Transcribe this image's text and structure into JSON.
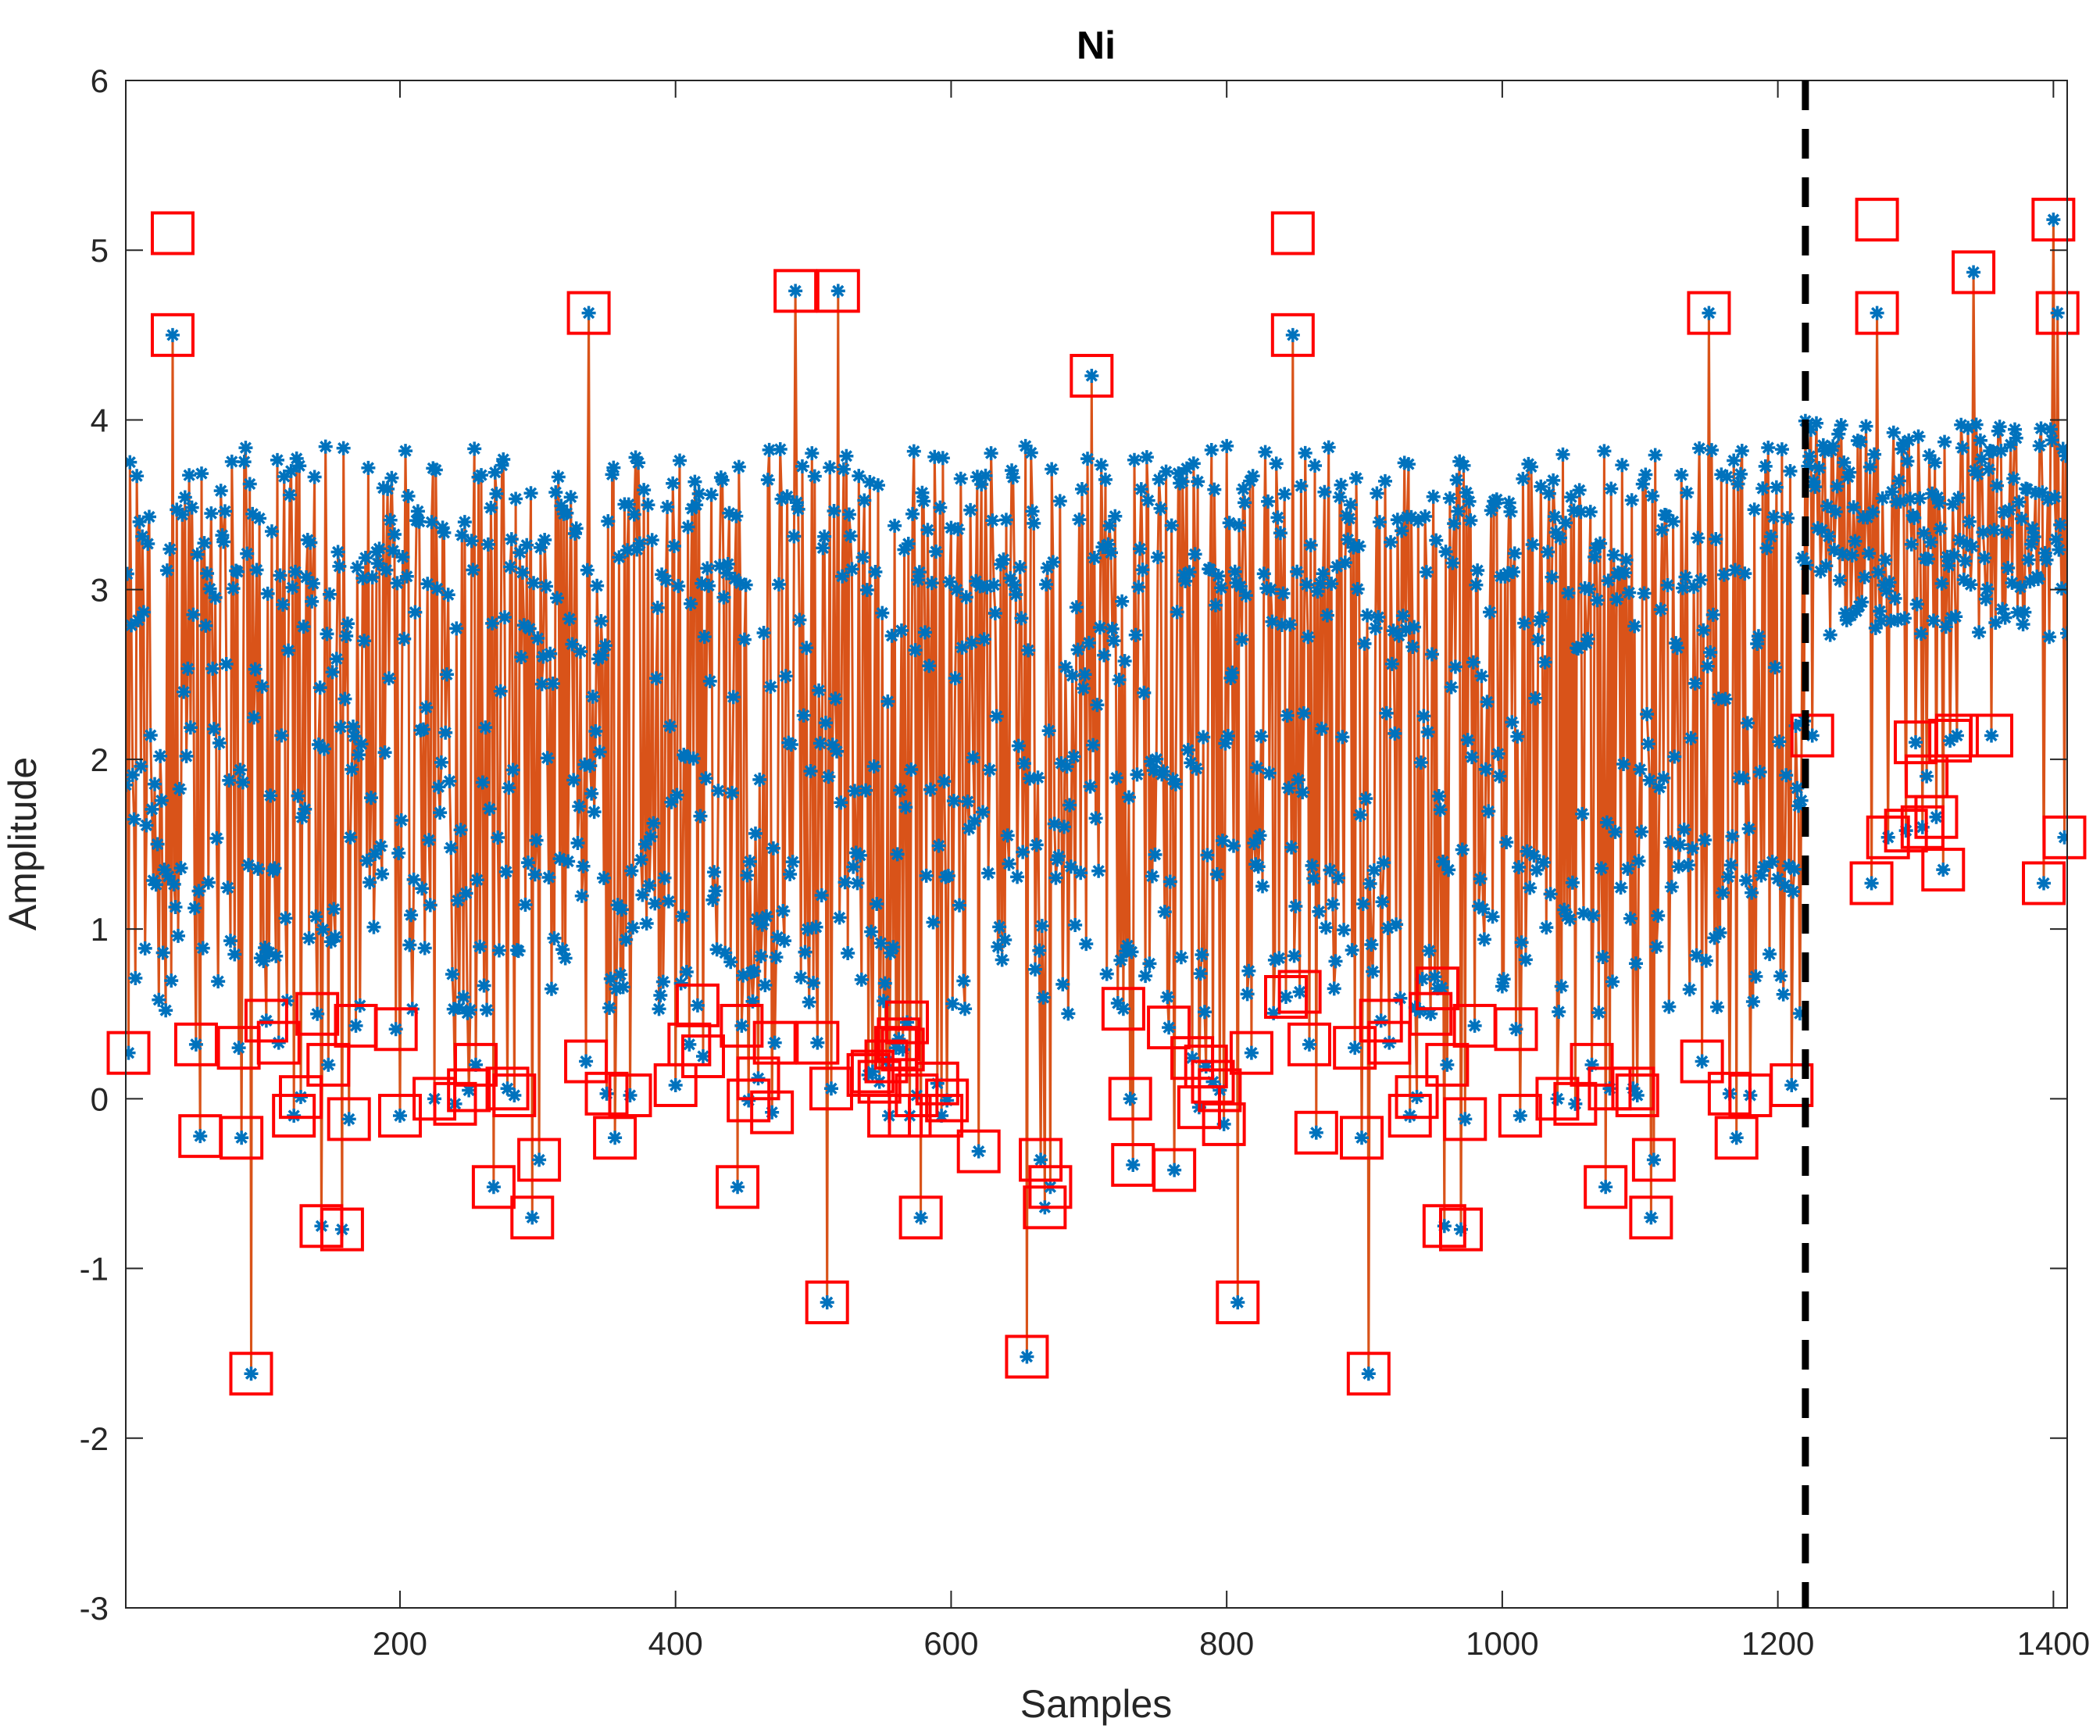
{
  "chart_data": {
    "type": "line",
    "title": "Ni",
    "xlabel": "Samples",
    "ylabel": "Amplitude",
    "xlim": [
      1,
      1410
    ],
    "ylim": [
      -3,
      6
    ],
    "xticks": [
      200,
      400,
      600,
      800,
      1000,
      1200,
      1400
    ],
    "yticks": [
      -3,
      -2,
      -1,
      0,
      1,
      2,
      3,
      4,
      5,
      6
    ],
    "grid": false,
    "changepoint_x": 1220,
    "colors": {
      "marker": "#0072BD",
      "line": "#D95319",
      "outlier_box": "#FF0000",
      "changepoint": "#000000"
    },
    "series": [
      {
        "name": "samples",
        "style": "asterisk-markers-with-line"
      },
      {
        "name": "outliers",
        "style": "red-square",
        "points": [
          [
            3,
            0.27
          ],
          [
            35,
            5.1
          ],
          [
            35,
            4.5
          ],
          [
            52,
            0.32
          ],
          [
            55,
            -0.22
          ],
          [
            83,
            0.3
          ],
          [
            85,
            -0.23
          ],
          [
            92,
            -1.62
          ],
          [
            103,
            0.46
          ],
          [
            112,
            0.33
          ],
          [
            123,
            -0.1
          ],
          [
            128,
            0.01
          ],
          [
            140,
            0.5
          ],
          [
            143,
            -0.75
          ],
          [
            148,
            0.2
          ],
          [
            158,
            -0.77
          ],
          [
            163,
            -0.12
          ],
          [
            168,
            0.43
          ],
          [
            197,
            0.41
          ],
          [
            200,
            -0.1
          ],
          [
            225,
            0.0
          ],
          [
            240,
            -0.03
          ],
          [
            250,
            0.05
          ],
          [
            255,
            0.2
          ],
          [
            268,
            -0.52
          ],
          [
            278,
            0.06
          ],
          [
            283,
            0.02
          ],
          [
            296,
            -0.7
          ],
          [
            301,
            -0.36
          ],
          [
            335,
            0.22
          ],
          [
            337,
            4.63
          ],
          [
            350,
            0.03
          ],
          [
            356,
            -0.23
          ],
          [
            367,
            0.02
          ],
          [
            400,
            0.08
          ],
          [
            410,
            0.32
          ],
          [
            416,
            0.55
          ],
          [
            420,
            0.25
          ],
          [
            445,
            -0.52
          ],
          [
            448,
            0.43
          ],
          [
            453,
            -0.01
          ],
          [
            460,
            0.12
          ],
          [
            470,
            -0.08
          ],
          [
            472,
            0.33
          ],
          [
            487,
            4.76
          ],
          [
            503,
            0.33
          ],
          [
            510,
            -1.2
          ],
          [
            513,
            0.06
          ],
          [
            518,
            4.76
          ],
          [
            540,
            0.14
          ],
          [
            543,
            0.16
          ],
          [
            548,
            0.1
          ],
          [
            553,
            0.22
          ],
          [
            555,
            -0.1
          ],
          [
            560,
            0.3
          ],
          [
            562,
            0.35
          ],
          [
            565,
            0.29
          ],
          [
            568,
            0.45
          ],
          [
            570,
            -0.1
          ],
          [
            575,
            0.02
          ],
          [
            578,
            -0.7
          ],
          [
            590,
            0.09
          ],
          [
            593,
            -0.1
          ],
          [
            597,
            -0.01
          ],
          [
            620,
            -0.31
          ],
          [
            655,
            -1.52
          ],
          [
            665,
            -0.36
          ],
          [
            668,
            -0.64
          ],
          [
            672,
            -0.52
          ],
          [
            702,
            4.26
          ],
          [
            725,
            0.53
          ],
          [
            730,
            0.0
          ],
          [
            732,
            -0.39
          ],
          [
            758,
            0.42
          ],
          [
            762,
            -0.42
          ],
          [
            775,
            0.24
          ],
          [
            780,
            -0.05
          ],
          [
            785,
            0.19
          ],
          [
            790,
            0.1
          ],
          [
            795,
            0.05
          ],
          [
            798,
            -0.15
          ],
          [
            808,
            -1.2
          ],
          [
            818,
            0.27
          ],
          [
            843,
            0.6
          ],
          [
            848,
            5.1
          ],
          [
            848,
            4.5
          ],
          [
            853,
            0.63
          ],
          [
            860,
            0.32
          ],
          [
            865,
            -0.2
          ],
          [
            893,
            0.3
          ],
          [
            898,
            -0.23
          ],
          [
            903,
            -1.62
          ],
          [
            912,
            0.46
          ],
          [
            918,
            0.33
          ],
          [
            933,
            -0.1
          ],
          [
            938,
            0.01
          ],
          [
            948,
            0.5
          ],
          [
            953,
            0.65
          ],
          [
            958,
            -0.75
          ],
          [
            960,
            0.2
          ],
          [
            970,
            -0.77
          ],
          [
            973,
            -0.12
          ],
          [
            980,
            0.43
          ],
          [
            1010,
            0.41
          ],
          [
            1013,
            -0.1
          ],
          [
            1040,
            0.0
          ],
          [
            1053,
            -0.03
          ],
          [
            1065,
            0.2
          ],
          [
            1075,
            -0.52
          ],
          [
            1078,
            0.06
          ],
          [
            1095,
            0.06
          ],
          [
            1098,
            0.02
          ],
          [
            1108,
            -0.7
          ],
          [
            1110,
            -0.36
          ],
          [
            1145,
            0.22
          ],
          [
            1150,
            4.63
          ],
          [
            1165,
            0.03
          ],
          [
            1170,
            -0.23
          ],
          [
            1180,
            0.02
          ],
          [
            1210,
            0.08
          ],
          [
            1225,
            2.14
          ],
          [
            1268,
            1.27
          ],
          [
            1272,
            5.18
          ],
          [
            1272,
            4.63
          ],
          [
            1280,
            1.54
          ],
          [
            1293,
            1.58
          ],
          [
            1300,
            2.1
          ],
          [
            1305,
            1.6
          ],
          [
            1308,
            1.9
          ],
          [
            1315,
            1.66
          ],
          [
            1320,
            1.35
          ],
          [
            1325,
            2.11
          ],
          [
            1330,
            2.14
          ],
          [
            1342,
            4.87
          ],
          [
            1355,
            2.14
          ],
          [
            1393,
            1.27
          ],
          [
            1400,
            5.18
          ],
          [
            1403,
            4.63
          ],
          [
            1408,
            1.54
          ]
        ]
      }
    ]
  }
}
